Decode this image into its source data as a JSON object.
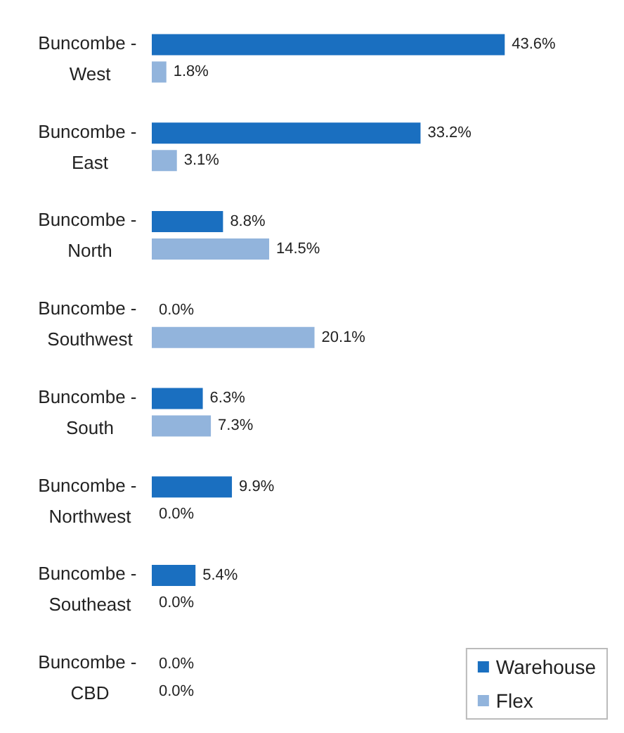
{
  "chart_data": {
    "type": "bar",
    "orientation": "horizontal",
    "categories": [
      "Buncombe - West",
      "Buncombe - East",
      "Buncombe - North",
      "Buncombe - Southwest",
      "Buncombe - South",
      "Buncombe - Northwest",
      "Buncombe - Southeast",
      "Buncombe - CBD"
    ],
    "series": [
      {
        "name": "Warehouse",
        "color": "#1a6fc0",
        "values": [
          43.6,
          33.2,
          8.8,
          0.0,
          6.3,
          9.9,
          5.4,
          0.0
        ],
        "value_labels": [
          "43.6%",
          "33.2%",
          "8.8%",
          "0.0%",
          "6.3%",
          "9.9%",
          "5.4%",
          "0.0%"
        ]
      },
      {
        "name": "Flex",
        "color": "#92b4dc",
        "values": [
          1.8,
          3.1,
          14.5,
          20.1,
          7.3,
          0.0,
          0.0,
          0.0
        ],
        "value_labels": [
          "1.8%",
          "3.1%",
          "14.5%",
          "20.1%",
          "7.3%",
          "0.0%",
          "0.0%",
          "0.0%"
        ]
      }
    ],
    "legend": "bottom right"
  }
}
